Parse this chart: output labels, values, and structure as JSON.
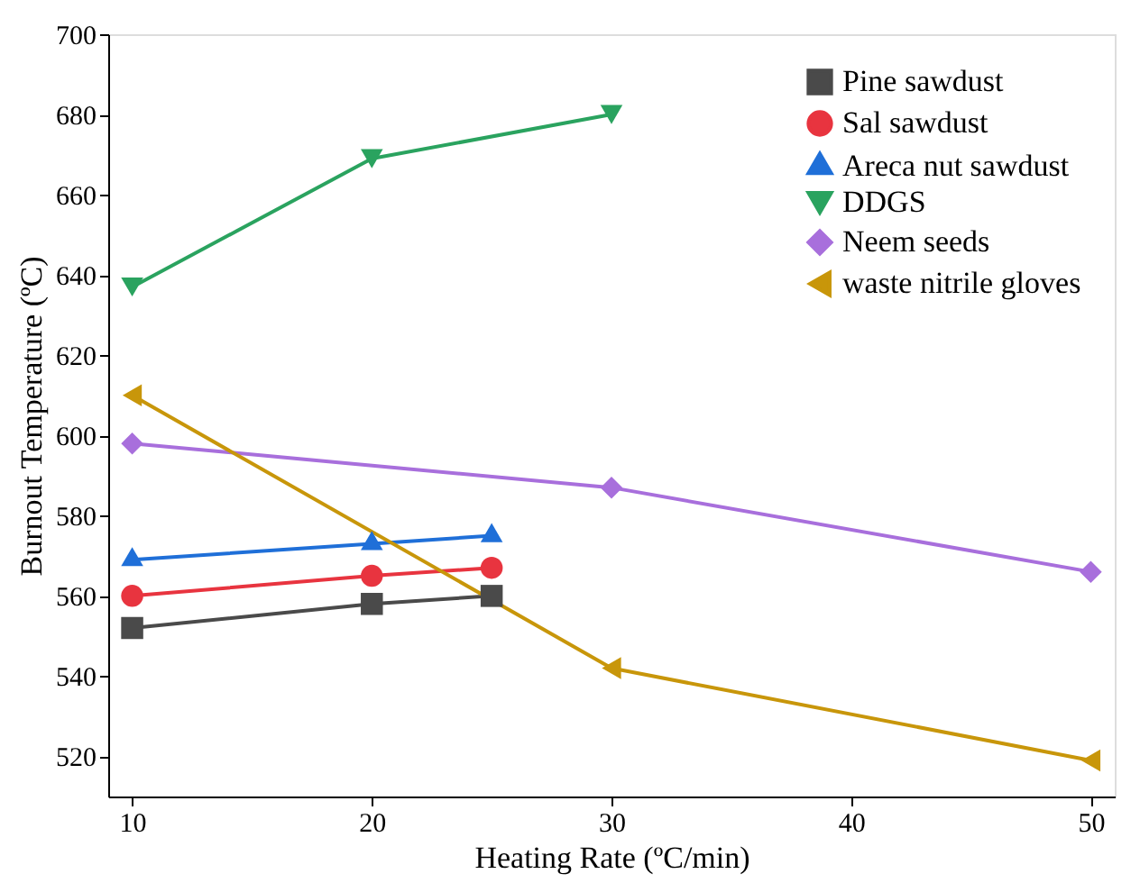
{
  "chart_data": {
    "type": "line",
    "xlabel": "Heating Rate (ºC/min)",
    "ylabel": "Burnout Temperature (ºC)",
    "xlim": [
      9,
      51
    ],
    "xticks": [
      10,
      20,
      30,
      40,
      50
    ],
    "ylim": [
      510,
      700
    ],
    "yticks": [
      520,
      540,
      560,
      580,
      600,
      620,
      640,
      660,
      680,
      700
    ],
    "grid": false,
    "legend": "top right",
    "line_style": "solid",
    "series": [
      {
        "name": "Pine sawdust",
        "color": "#4a4a4a",
        "marker": "square",
        "x": [
          10,
          20,
          25
        ],
        "values": [
          552,
          558,
          560
        ]
      },
      {
        "name": "Sal sawdust",
        "color": "#e8343f",
        "marker": "circle",
        "x": [
          10,
          20,
          25
        ],
        "values": [
          560,
          565,
          567
        ]
      },
      {
        "name": "Areca nut sawdust",
        "color": "#1f6fd8",
        "marker": "triangle",
        "x": [
          10,
          20,
          25
        ],
        "values": [
          569,
          573,
          575
        ]
      },
      {
        "name": "DDGS",
        "color": "#2aa35f",
        "marker": "triangle-down",
        "x": [
          10,
          20,
          30
        ],
        "values": [
          637,
          669,
          680
        ]
      },
      {
        "name": "Neem seeds",
        "color": "#a86fdc",
        "marker": "diamond",
        "x": [
          10,
          30,
          50
        ],
        "values": [
          598,
          587,
          566
        ]
      },
      {
        "name": "waste nitrile gloves",
        "color": "#c8960a",
        "marker": "triangle-left",
        "x": [
          10,
          30,
          50
        ],
        "values": [
          610,
          542,
          519
        ]
      }
    ]
  }
}
